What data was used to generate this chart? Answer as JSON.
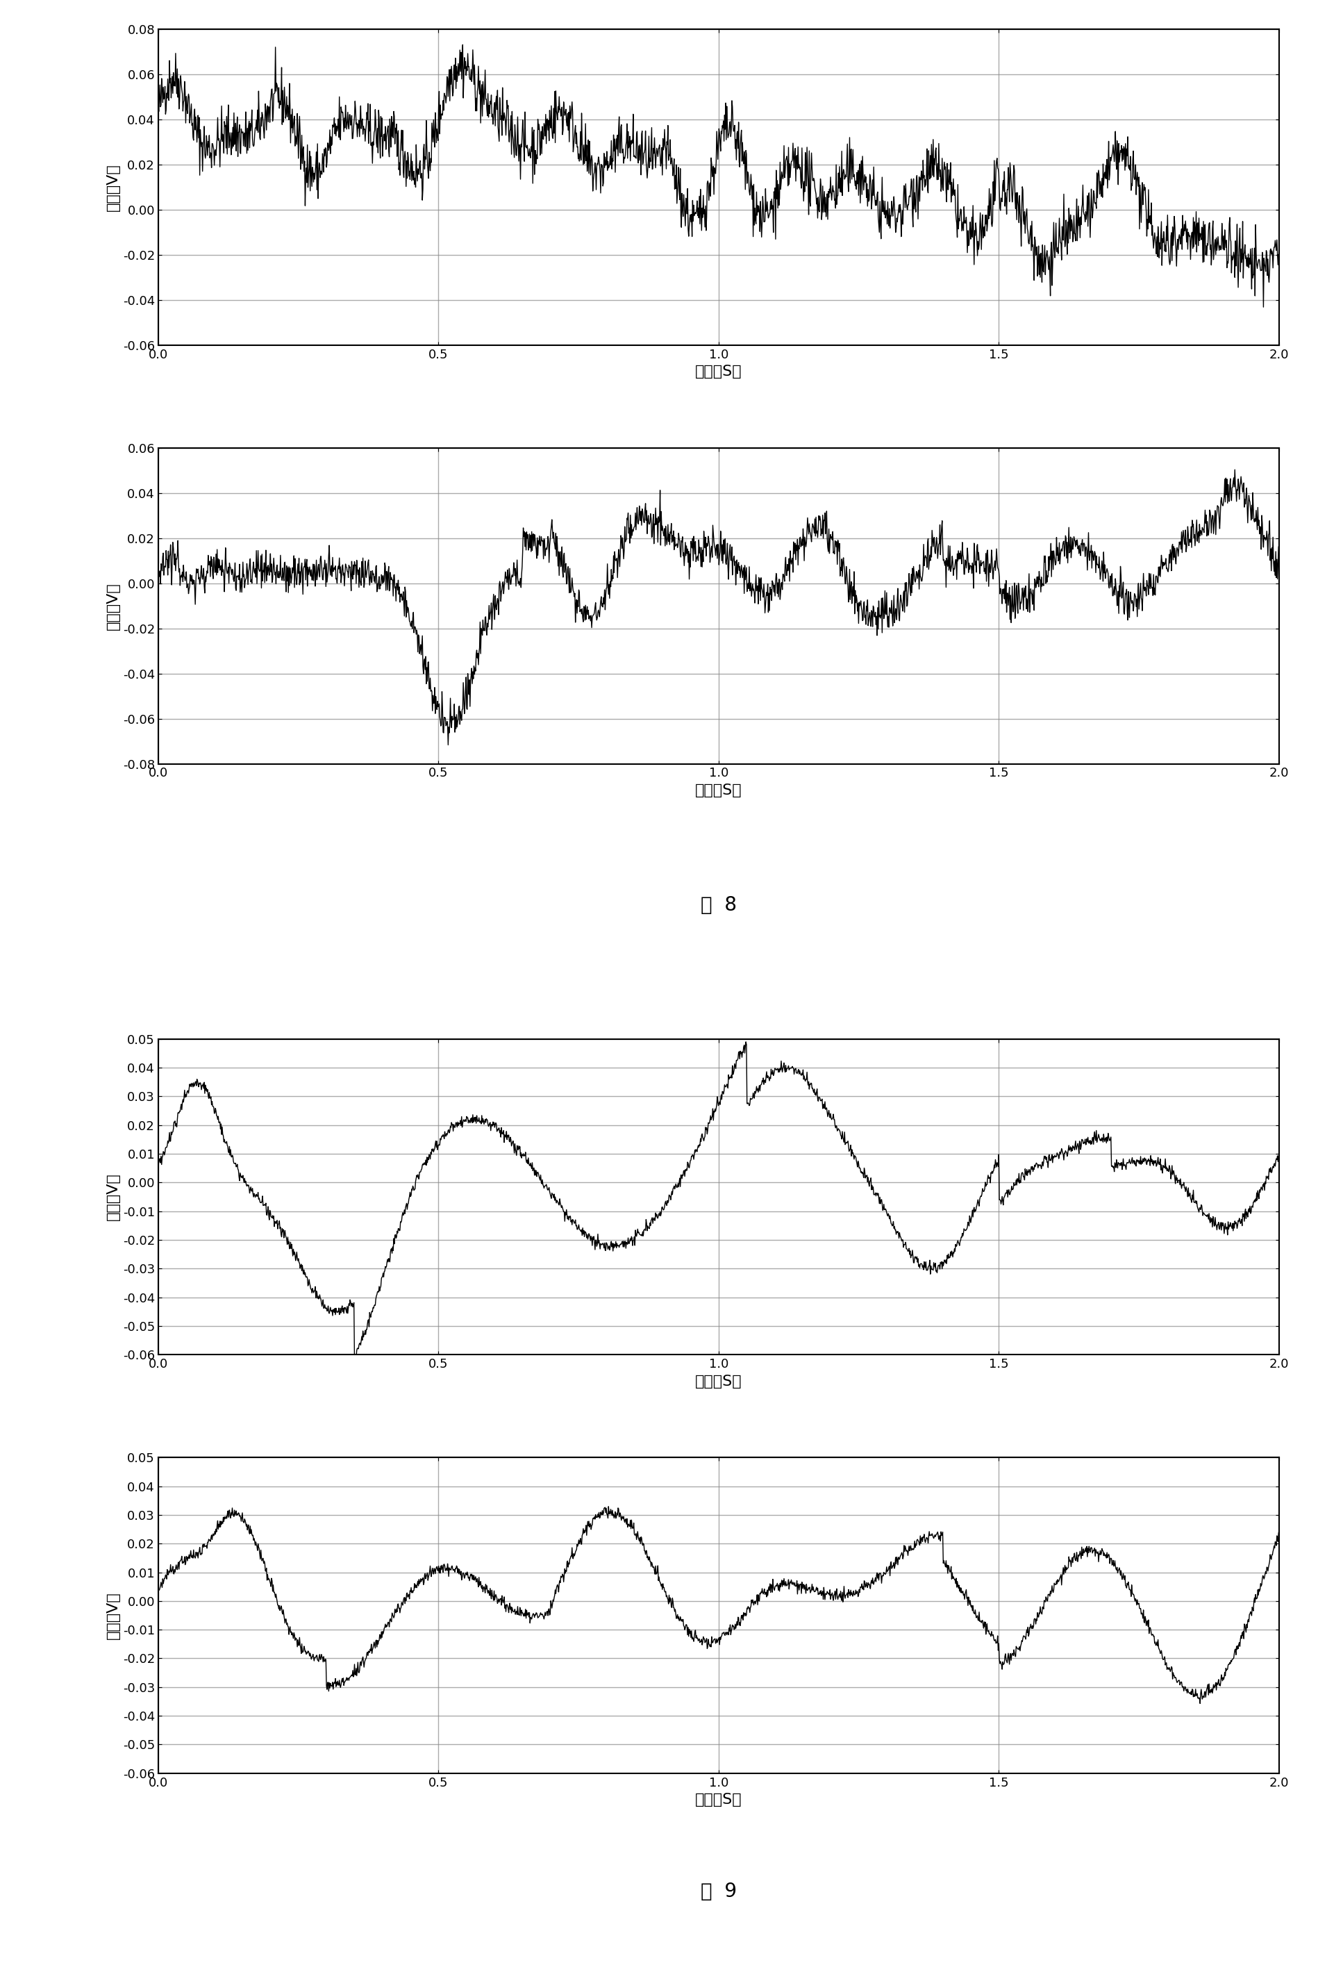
{
  "fig8_label": "图  8",
  "fig9_label": "图  9",
  "xlabel": "时间（S）",
  "ylabel": "电压（V）",
  "xlim": [
    0,
    2
  ],
  "xticks": [
    0,
    0.5,
    1,
    1.5,
    2
  ],
  "plot1_ylim": [
    -0.06,
    0.08
  ],
  "plot1_yticks": [
    -0.06,
    -0.04,
    -0.02,
    0,
    0.02,
    0.04,
    0.06,
    0.08
  ],
  "plot2_ylim": [
    -0.08,
    0.06
  ],
  "plot2_yticks": [
    -0.08,
    -0.06,
    -0.04,
    -0.02,
    0,
    0.02,
    0.04,
    0.06
  ],
  "plot3_ylim": [
    -0.06,
    0.05
  ],
  "plot3_yticks": [
    -0.06,
    -0.05,
    -0.04,
    -0.03,
    -0.02,
    -0.01,
    0,
    0.01,
    0.02,
    0.03,
    0.04,
    0.05
  ],
  "plot4_ylim": [
    -0.06,
    0.05
  ],
  "plot4_yticks": [
    -0.06,
    -0.05,
    -0.04,
    -0.03,
    -0.02,
    -0.01,
    0,
    0.01,
    0.02,
    0.03,
    0.04,
    0.05
  ],
  "line_color": "#000000",
  "bg_color": "#ffffff",
  "grid_color": "#888888",
  "font_size_label": 16,
  "font_size_tick": 13,
  "font_size_fig_label": 20
}
